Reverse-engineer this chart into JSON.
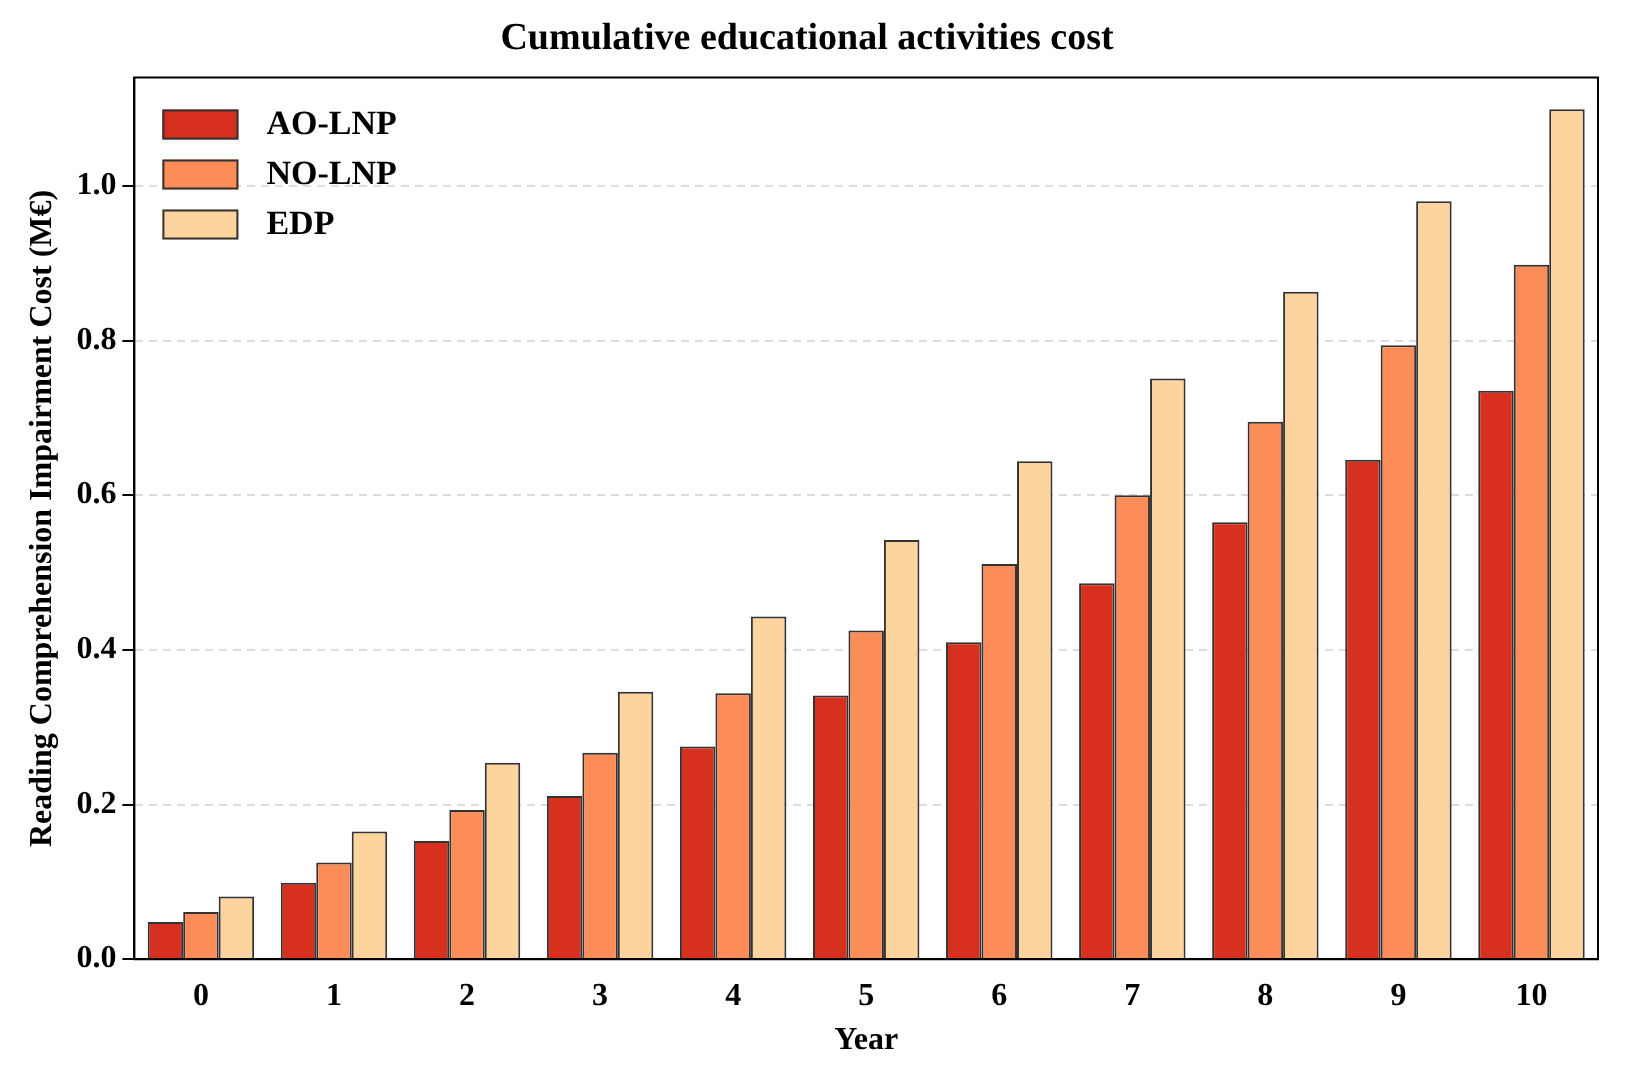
{
  "chart_data": {
    "type": "bar",
    "title": "Cumulative educational activities cost",
    "xlabel": "Year",
    "ylabel": "Reading Comprehension Impairment Cost (M€)",
    "categories": [
      "0",
      "1",
      "2",
      "3",
      "4",
      "5",
      "6",
      "7",
      "8",
      "9",
      "10"
    ],
    "series": [
      {
        "name": "AO-LNP",
        "color": "#d7301f",
        "values": [
          0.048,
          0.099,
          0.153,
          0.211,
          0.275,
          0.341,
          0.41,
          0.486,
          0.565,
          0.646,
          0.735
        ]
      },
      {
        "name": "NO-LNP",
        "color": "#fc8d59",
        "values": [
          0.061,
          0.125,
          0.193,
          0.267,
          0.344,
          0.425,
          0.511,
          0.6,
          0.695,
          0.794,
          0.898
        ]
      },
      {
        "name": "EDP",
        "color": "#fdd49e",
        "values": [
          0.081,
          0.165,
          0.254,
          0.346,
          0.443,
          0.542,
          0.644,
          0.751,
          0.863,
          0.98,
          1.099
        ]
      }
    ],
    "ylim": [
      0,
      1.14
    ],
    "yticks": [
      {
        "value": 0,
        "label": "0.0"
      },
      {
        "value": 0.2,
        "label": "0.2"
      },
      {
        "value": 0.4,
        "label": "0.4"
      },
      {
        "value": 0.6,
        "label": "0.6"
      },
      {
        "value": 0.8,
        "label": "0.8"
      },
      {
        "value": 1,
        "label": "1.0"
      }
    ],
    "grid": "y",
    "legend": "top left"
  }
}
